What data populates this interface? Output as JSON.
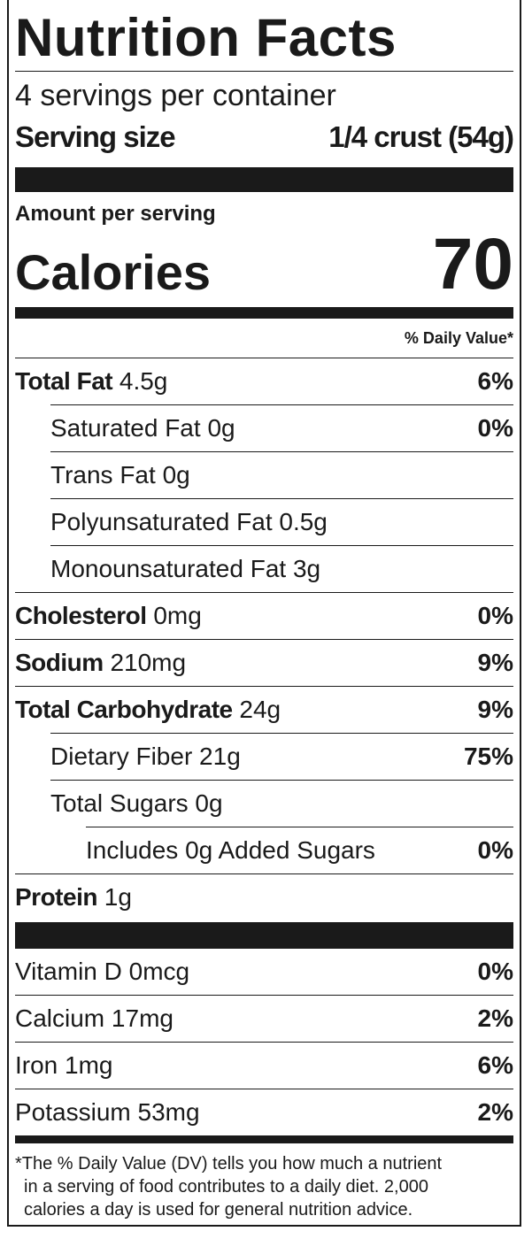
{
  "title": "Nutrition Facts",
  "servings": "4 servings per container",
  "serving_size": {
    "label": "Serving size",
    "value": "1/4 crust (54g)"
  },
  "amount_per_serving": "Amount per serving",
  "calories": {
    "label": "Calories",
    "value": "70"
  },
  "dv_header": "% Daily Value*",
  "nutrients": [
    {
      "name": "Total Fat",
      "amount": "4.5g",
      "dv": "6%"
    },
    {
      "name": "Saturated Fat",
      "amount": "0g",
      "dv": "0%"
    },
    {
      "name": "Trans Fat",
      "amount": "0g"
    },
    {
      "name": "Polyunsaturated Fat",
      "amount": "0.5g"
    },
    {
      "name": "Monounsaturated Fat",
      "amount": "3g"
    },
    {
      "name": "Cholesterol",
      "amount": "0mg",
      "dv": "0%"
    },
    {
      "name": "Sodium",
      "amount": "210mg",
      "dv": "9%"
    },
    {
      "name": "Total Carbohydrate",
      "amount": "24g",
      "dv": "9%"
    },
    {
      "name": "Dietary Fiber",
      "amount": "21g",
      "dv": "75%"
    },
    {
      "name": "Total Sugars",
      "amount": "0g"
    },
    {
      "name": "Includes 0g Added Sugars",
      "dv": "0%"
    },
    {
      "name": "Protein",
      "amount": "1g"
    }
  ],
  "vitamins": [
    {
      "name": "Vitamin D",
      "amount": "0mcg",
      "dv": "0%"
    },
    {
      "name": "Calcium",
      "amount": "17mg",
      "dv": "2%"
    },
    {
      "name": "Iron",
      "amount": "1mg",
      "dv": "6%"
    },
    {
      "name": "Potassium",
      "amount": "53mg",
      "dv": "2%"
    }
  ],
  "footnote": [
    "*The % Daily Value (DV) tells you how much a nutrient",
    "in a serving of food contributes to a daily diet. 2,000",
    "calories a day is used for general nutrition advice."
  ]
}
